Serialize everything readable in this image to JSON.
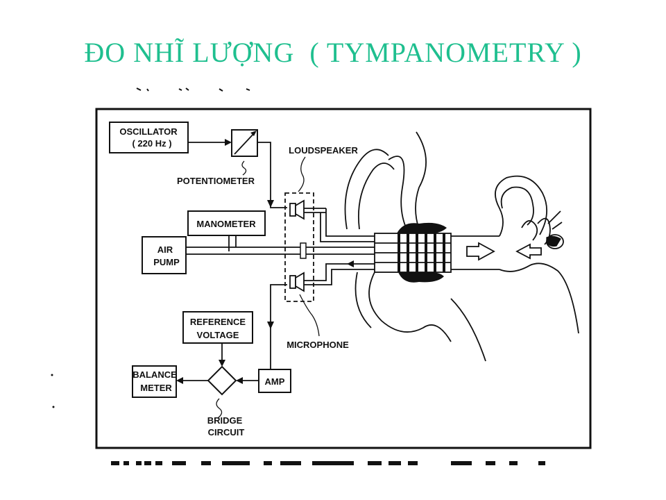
{
  "title": "ĐO NHĨ LƯỢNG  ( TYMPANOMETRY )",
  "colors": {
    "title": "#1fbf8f",
    "ink": "#111111",
    "background": "#ffffff"
  },
  "labels": {
    "oscillator_1": "OSCILLATOR",
    "oscillator_2": "( 220 Hz )",
    "potentiometer": "POTENTIOMETER",
    "loudspeaker": "LOUDSPEAKER",
    "manometer": "MANOMETER",
    "air_pump_1": "AIR",
    "air_pump_2": "PUMP",
    "reference_voltage_1": "REFERENCE",
    "reference_voltage_2": "VOLTAGE",
    "microphone": "MICROPHONE",
    "balance_meter_1": "BALANCE",
    "balance_meter_2": "METER",
    "amp": "AMP",
    "bridge_circuit_1": "BRIDGE",
    "bridge_circuit_2": "CIRCUIT"
  }
}
